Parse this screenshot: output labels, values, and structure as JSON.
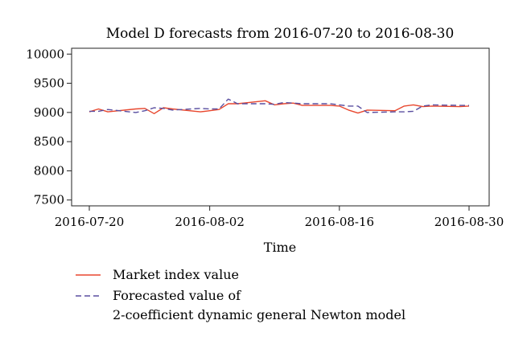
{
  "chart_data": {
    "type": "line",
    "title": "Model D forecasts from 2016-07-20 to 2016-08-30",
    "xlabel": "Time",
    "ylabel": "",
    "x_ticks": [
      "2016-07-20",
      "2016-08-02",
      "2016-08-16",
      "2016-08-30"
    ],
    "y_ticks": [
      10000,
      9500,
      9000,
      8500,
      8000,
      7500
    ],
    "ylim": [
      7400,
      10100
    ],
    "grid": false,
    "legend": "bottom",
    "x": [
      "2016-07-20",
      "2016-07-21",
      "2016-07-22",
      "2016-07-25",
      "2016-07-26",
      "2016-07-27",
      "2016-07-28",
      "2016-07-29",
      "2016-08-01",
      "2016-08-02",
      "2016-08-03",
      "2016-08-04",
      "2016-08-05",
      "2016-08-08",
      "2016-08-09",
      "2016-08-10",
      "2016-08-11",
      "2016-08-12",
      "2016-08-15",
      "2016-08-16",
      "2016-08-17",
      "2016-08-18",
      "2016-08-19",
      "2016-08-22",
      "2016-08-23",
      "2016-08-24",
      "2016-08-25",
      "2016-08-26",
      "2016-08-29",
      "2016-08-30"
    ],
    "series": [
      {
        "name": "Market index value",
        "color": "#e8472e",
        "dash": "solid",
        "values": [
          9010,
          9060,
          9010,
          9060,
          9070,
          8980,
          9080,
          9060,
          9010,
          9030,
          9050,
          9150,
          9150,
          9200,
          9130,
          9150,
          9160,
          9120,
          9120,
          9110,
          9040,
          8990,
          9040,
          9030,
          9110,
          9130,
          9100,
          9110,
          9100,
          9110
        ]
      },
      {
        "name": "Forecasted value of 2-coefficient dynamic general Newton model",
        "color": "#5a4fa0",
        "dash": "dashed",
        "values": [
          9020,
          9020,
          9050,
          9000,
          9030,
          9080,
          9070,
          9040,
          9070,
          9060,
          9060,
          9230,
          9150,
          9150,
          9140,
          9170,
          9160,
          9150,
          9150,
          9130,
          9110,
          9110,
          9000,
          9010,
          9010,
          9020,
          9110,
          9130,
          9120,
          9120
        ]
      }
    ],
    "legend_entries": [
      {
        "label_lines": [
          "Market index value"
        ]
      },
      {
        "label_lines": [
          "Forecasted value of",
          "2-coefficient dynamic general Newton model"
        ]
      }
    ]
  }
}
